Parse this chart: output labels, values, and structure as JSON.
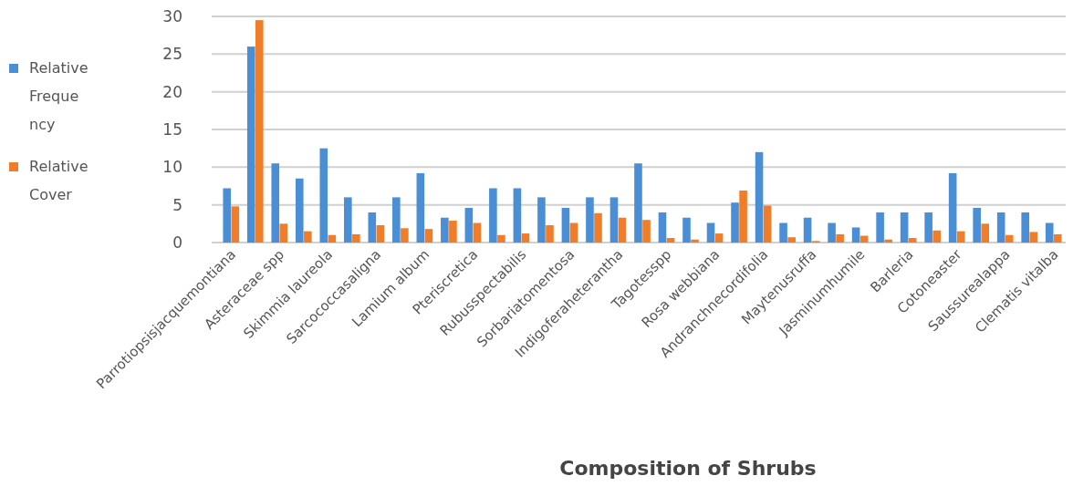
{
  "chart_data": {
    "type": "bar",
    "xlabel": "Composition of Shrubs",
    "categories": [
      "Parrotiopsisjacquemontiana",
      null,
      "Asteraceae spp",
      null,
      "Skimmia laureola",
      null,
      "Sarcococcasaligna",
      null,
      "Lamium album",
      null,
      "Pteriscretica",
      null,
      "Rubusspectabilis",
      null,
      "Sorbariatomentosa",
      null,
      "Indigoferaheterantha",
      null,
      "Tagotesspp",
      null,
      "Rosa webbiana",
      null,
      "Andranchnecordifolia",
      null,
      "Maytenusruffa",
      null,
      "Jasminumhumile",
      null,
      "Barleria",
      null,
      "Cotoneaster",
      null,
      "Saussurealappa",
      null,
      "Clematis vitalba"
    ],
    "series": [
      {
        "name": "Relative Frequency",
        "color": "#4a8fd6",
        "values": [
          7.2,
          26,
          10.5,
          8.5,
          12.5,
          6,
          4,
          6,
          9.2,
          3.3,
          4.6,
          7.2,
          7.2,
          6,
          4.6,
          6,
          6,
          10.5,
          4,
          3.3,
          2.6,
          5.3,
          12,
          2.6,
          3.3,
          2.6,
          2,
          4,
          4,
          4,
          9.2,
          4.6,
          4,
          4,
          2.6
        ]
      },
      {
        "name": "Relative Cover",
        "color": "#f07d2a",
        "values": [
          4.8,
          29.5,
          2.5,
          1.5,
          1,
          1.1,
          2.3,
          1.9,
          1.8,
          2.9,
          2.6,
          1,
          1.2,
          2.3,
          2.6,
          3.9,
          3.3,
          3,
          0.6,
          0.4,
          1.2,
          6.9,
          4.9,
          0.7,
          0.2,
          1.1,
          0.9,
          0.4,
          0.6,
          1.6,
          1.5,
          2.5,
          1,
          1.4,
          1.1
        ]
      }
    ],
    "ylim": [
      0,
      30
    ],
    "yticks": [
      0,
      5,
      10,
      15,
      20,
      25,
      30
    ],
    "grid": "y",
    "legend": "left"
  }
}
